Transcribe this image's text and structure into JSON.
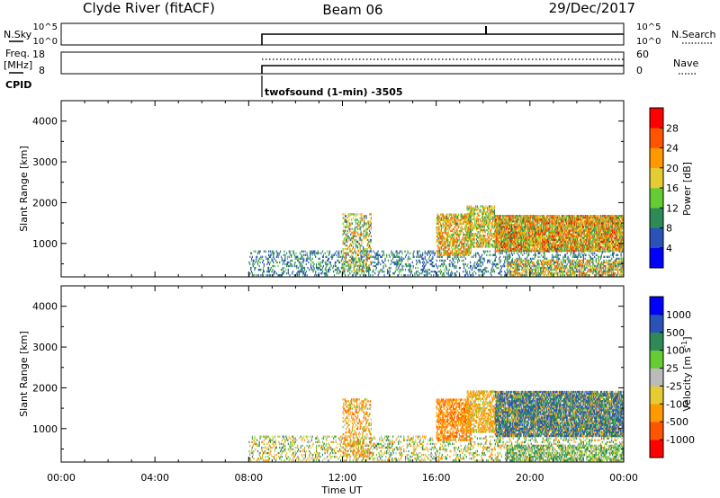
{
  "header": {
    "station": "Clyde River (fitACF)",
    "beam": "Beam 06",
    "date": "29/Dec/2017"
  },
  "noise_panel": {
    "left_label": "N.Sky",
    "right_label": "N.Search",
    "left_ticks": [
      "10^5",
      "10^0"
    ],
    "right_ticks": [
      "10^5",
      "10^0"
    ]
  },
  "freq_panel": {
    "left_label_line1": "Freq.",
    "left_label_line2": "[MHz]",
    "right_label": "Nave",
    "left_ticks": [
      "18",
      "8"
    ],
    "right_ticks": [
      "60",
      "0"
    ]
  },
  "cpid": {
    "label": "CPID",
    "program": "twofsound (1-min) -3505"
  },
  "colors": {
    "power_scale": [
      "#0000ff",
      "#2a52b8",
      "#2e8b57",
      "#66cc33",
      "#e6cc33",
      "#ff9900",
      "#ff5500",
      "#ff0000"
    ],
    "velocity_scale": [
      "#ff0000",
      "#ff5500",
      "#ff9900",
      "#e6cc33",
      "#bbbbbb",
      "#66cc33",
      "#2e8b57",
      "#2a52b8",
      "#0000ff"
    ]
  },
  "chart_data": [
    {
      "type": "heatmap",
      "name": "power",
      "ylabel": "Slant Range [km]",
      "yticks": [
        1000,
        2000,
        3000,
        4000
      ],
      "ylim": [
        180,
        4500
      ],
      "xlim": [
        0,
        24
      ],
      "colorbar": {
        "label": "Power [dB]",
        "ticks": [
          "4",
          "8",
          "12",
          "16",
          "20",
          "24",
          "28"
        ],
        "range": [
          0,
          30
        ]
      },
      "echo_regions": [
        {
          "t0": 8.0,
          "t1": 24.0,
          "r0": 200,
          "r1": 800,
          "density": 0.25,
          "v0": 4,
          "v1": 12
        },
        {
          "t0": 12.0,
          "t1": 13.2,
          "r0": 300,
          "r1": 1700,
          "density": 0.35,
          "v0": 6,
          "v1": 24
        },
        {
          "t0": 16.0,
          "t1": 17.5,
          "r0": 700,
          "r1": 1700,
          "density": 0.6,
          "v0": 10,
          "v1": 26
        },
        {
          "t0": 17.3,
          "t1": 18.5,
          "r0": 900,
          "r1": 1900,
          "density": 0.55,
          "v0": 8,
          "v1": 24
        },
        {
          "t0": 18.5,
          "t1": 24.0,
          "r0": 800,
          "r1": 1700,
          "density": 0.85,
          "v0": 8,
          "v1": 28
        },
        {
          "t0": 19.0,
          "t1": 24.0,
          "r0": 200,
          "r1": 600,
          "density": 0.45,
          "v0": 8,
          "v1": 26
        }
      ]
    },
    {
      "type": "heatmap",
      "name": "velocity",
      "ylabel": "Slant Range [km]",
      "yticks": [
        1000,
        2000,
        3000,
        4000
      ],
      "ylim": [
        180,
        4500
      ],
      "xlim": [
        0,
        24
      ],
      "xticks": [
        "00:00",
        "04:00",
        "08:00",
        "12:00",
        "16:00",
        "20:00",
        "00:00"
      ],
      "xlabel": "Time UT",
      "colorbar": {
        "label": "Velocity [m s",
        "label_sup": "-1",
        "label_close": "]",
        "ticks": [
          "-1000",
          "-500",
          "-100",
          "-25",
          "25",
          "100",
          "500",
          "1000"
        ]
      },
      "echo_regions": [
        {
          "t0": 8.0,
          "t1": 24.0,
          "r0": 200,
          "r1": 800,
          "density": 0.25,
          "v0": -200,
          "v1": 200
        },
        {
          "t0": 12.0,
          "t1": 13.2,
          "r0": 300,
          "r1": 1700,
          "density": 0.35,
          "v0": -600,
          "v1": 100
        },
        {
          "t0": 16.0,
          "t1": 17.5,
          "r0": 700,
          "r1": 1700,
          "density": 0.6,
          "v0": -700,
          "v1": -50
        },
        {
          "t0": 17.3,
          "t1": 18.5,
          "r0": 900,
          "r1": 1900,
          "density": 0.55,
          "v0": -500,
          "v1": 100
        },
        {
          "t0": 18.5,
          "t1": 24.0,
          "r0": 800,
          "r1": 1900,
          "density": 0.85,
          "v0": -300,
          "v1": 1000
        },
        {
          "t0": 19.0,
          "t1": 24.0,
          "r0": 200,
          "r1": 600,
          "density": 0.45,
          "v0": -100,
          "v1": 300
        }
      ]
    }
  ]
}
